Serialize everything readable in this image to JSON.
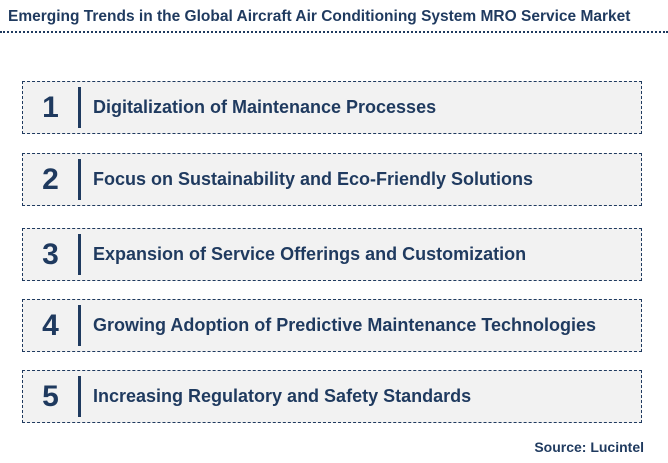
{
  "title": "Emerging Trends in the Global Aircraft Air Conditioning System MRO Service Market",
  "trends": [
    {
      "number": "1",
      "label": "Digitalization of Maintenance Processes"
    },
    {
      "number": "2",
      "label": "Focus on Sustainability and Eco-Friendly Solutions"
    },
    {
      "number": "3",
      "label": "Expansion of Service Offerings and Customization"
    },
    {
      "number": "4",
      "label": "Growing Adoption of Predictive Maintenance Technologies"
    },
    {
      "number": "5",
      "label": "Increasing Regulatory and Safety Standards"
    }
  ],
  "source": "Source: Lucintel",
  "colors": {
    "text": "#1f3a5f",
    "box_fill": "#f2f2f2"
  }
}
